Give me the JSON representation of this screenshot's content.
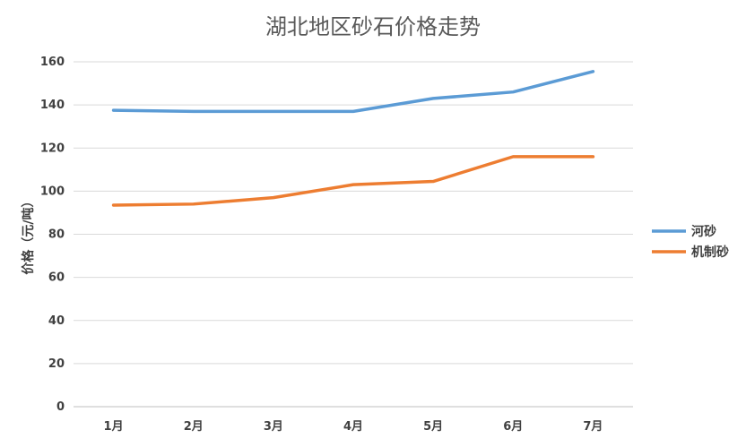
{
  "chart_data": {
    "type": "line",
    "title": "湖北地区砂石价格走势",
    "xlabel": "",
    "ylabel": "价格（元/吨）",
    "categories": [
      "1月",
      "2月",
      "3月",
      "4月",
      "5月",
      "6月",
      "7月"
    ],
    "yticks": [
      "0",
      "20",
      "40",
      "60",
      "80",
      "100",
      "120",
      "140",
      "160"
    ],
    "ylim": [
      0,
      160
    ],
    "grid": true,
    "legend_position": "right",
    "series": [
      {
        "name": "河砂",
        "color": "#5b9bd5",
        "values": [
          137.5,
          137,
          137,
          137,
          143,
          146,
          155.5
        ]
      },
      {
        "name": "机制砂",
        "color": "#ed7d31",
        "values": [
          93.5,
          94,
          97,
          103,
          104.5,
          116,
          116
        ]
      }
    ]
  }
}
